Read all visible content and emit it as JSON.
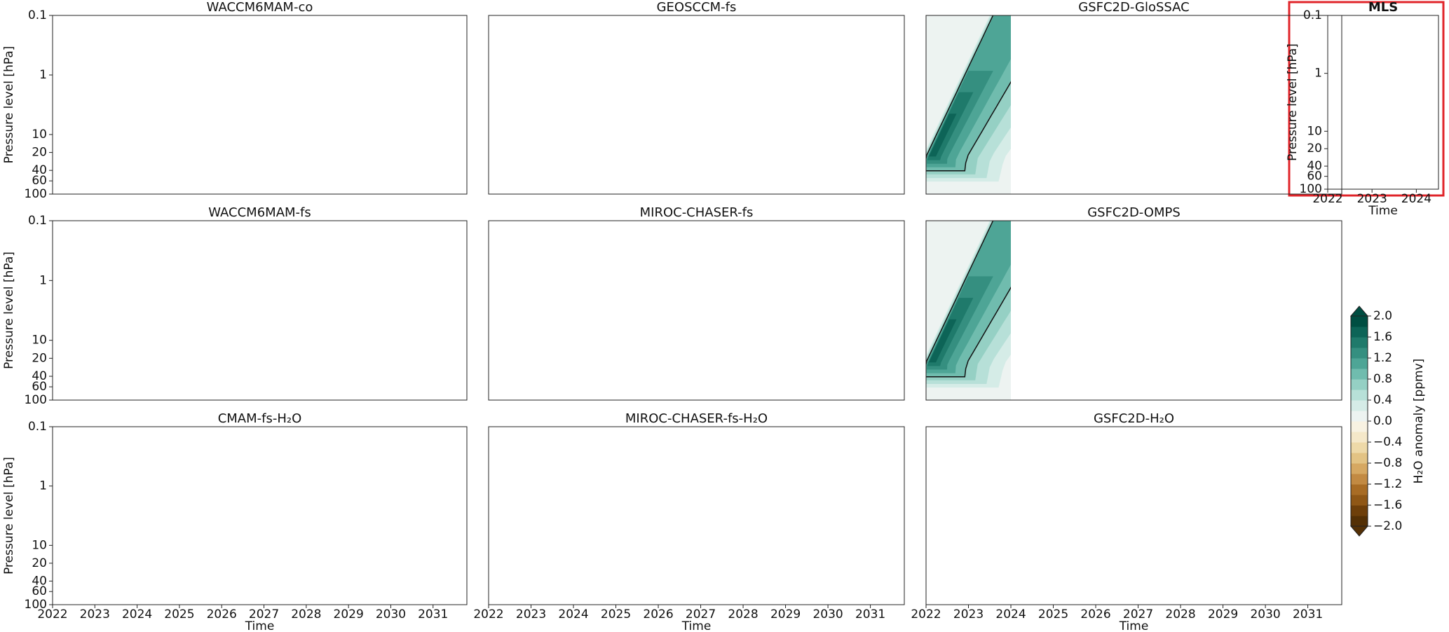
{
  "chart_data": [
    {
      "type": "contour",
      "title": "WACCM6MAM-co",
      "ylabel": "Pressure level [hPa]",
      "ylog": true,
      "xlim": [
        2022,
        2031.8
      ],
      "ylim": [
        100,
        0.1
      ],
      "yticks": [
        0.1,
        1,
        10,
        20,
        40,
        60,
        100
      ]
    },
    {
      "type": "contour",
      "title": "GEOSCCM-fs",
      "ylog": true,
      "xlim": [
        2022,
        2031.8
      ],
      "ylim": [
        100,
        0.1
      ]
    },
    {
      "type": "contour",
      "title": "GSFC2D-GloSSAC",
      "ylog": true,
      "xlim": [
        2022,
        2031.8
      ],
      "ylim": [
        100,
        0.1
      ]
    },
    {
      "type": "contour",
      "title": "MLS",
      "ylabel": "Pressure level [hPa]",
      "xlabel": "Time",
      "ylog": true,
      "xlim": [
        2022,
        2024.5
      ],
      "ylim": [
        100,
        0.1
      ],
      "yticks": [
        0.1,
        1,
        10,
        20,
        40,
        60,
        100
      ],
      "xticks": [
        2022,
        2023,
        2024
      ]
    },
    {
      "type": "contour",
      "title": "WACCM6MAM-fs",
      "ylabel": "Pressure level [hPa]",
      "ylog": true,
      "xlim": [
        2022,
        2031.8
      ],
      "ylim": [
        100,
        0.1
      ],
      "yticks": [
        0.1,
        1,
        10,
        20,
        40,
        60,
        100
      ]
    },
    {
      "type": "contour",
      "title": "MIROC-CHASER-fs",
      "ylog": true,
      "xlim": [
        2022,
        2031.8
      ],
      "ylim": [
        100,
        0.1
      ]
    },
    {
      "type": "contour",
      "title": "GSFC2D-OMPS",
      "ylog": true,
      "xlim": [
        2022,
        2031.8
      ],
      "ylim": [
        100,
        0.1
      ]
    },
    {
      "type": "contour",
      "title": "CMAM-fs-H₂O",
      "ylabel": "Pressure level [hPa]",
      "xlabel": "Time",
      "ylog": true,
      "xlim": [
        2022,
        2031.8
      ],
      "ylim": [
        100,
        0.1
      ],
      "yticks": [
        0.1,
        1,
        10,
        20,
        40,
        60,
        100
      ],
      "xticks": [
        2022,
        2023,
        2024,
        2025,
        2026,
        2027,
        2028,
        2029,
        2030,
        2031
      ]
    },
    {
      "type": "contour",
      "title": "MIROC-CHASER-fs-H₂O",
      "xlabel": "Time",
      "ylog": true,
      "xlim": [
        2022,
        2031.8
      ],
      "ylim": [
        100,
        0.1
      ],
      "xticks": [
        2022,
        2023,
        2024,
        2025,
        2026,
        2027,
        2028,
        2029,
        2030,
        2031
      ]
    },
    {
      "type": "contour",
      "title": "GSFC2D-H₂O",
      "xlabel": "Time",
      "ylog": true,
      "xlim": [
        2022,
        2031.8
      ],
      "ylim": [
        100,
        0.1
      ],
      "xticks": [
        2022,
        2023,
        2024,
        2025,
        2026,
        2027,
        2028,
        2029,
        2030,
        2031
      ]
    },
    {
      "type": "colorbar",
      "label": "H₂O anomaly [ppmv]",
      "ylim": [
        -2,
        2
      ],
      "yticks": [
        {
          "value": 2,
          "label": "2.0"
        },
        {
          "value": 1.6,
          "label": "1.6"
        },
        {
          "value": 1.2,
          "label": "1.2"
        },
        {
          "value": 0.8,
          "label": "0.8"
        },
        {
          "value": 0.4,
          "label": "0.4"
        },
        {
          "value": 0,
          "label": "0.0"
        },
        {
          "value": -0.4,
          "label": "−0.4"
        },
        {
          "value": -0.8,
          "label": "−0.8"
        },
        {
          "value": -1.2,
          "label": "−1.2"
        },
        {
          "value": -1.6,
          "label": "−1.6"
        },
        {
          "value": -2,
          "label": "−2.0"
        }
      ],
      "colors": [
        "#543005",
        "#6e3f0a",
        "#8f5716",
        "#a86c25",
        "#c28a43",
        "#d6a862",
        "#e3c384",
        "#eed9a8",
        "#f5e8c9",
        "#f8f2e2",
        "#edf3f1",
        "#d5ece7",
        "#b7e0d8",
        "#95d0c4",
        "#70bcae",
        "#4ea596",
        "#358f80",
        "#1f7a6b",
        "#0d6457",
        "#004e42"
      ]
    }
  ]
}
